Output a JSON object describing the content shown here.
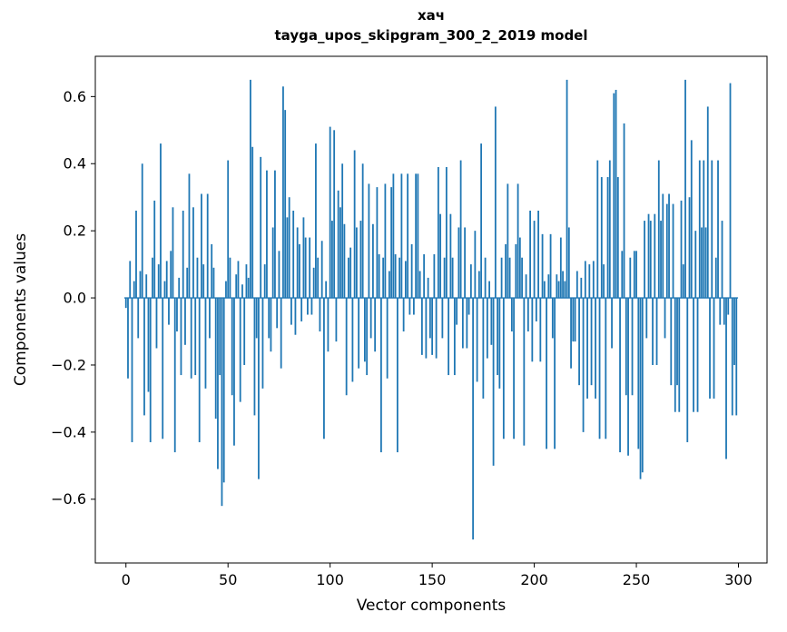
{
  "figure": {
    "title_line1": "хач",
    "title_line2": "tayga_upos_skipgram_300_2_2019 model"
  },
  "chart_data": {
    "type": "bar",
    "title": "хач — tayga_upos_skipgram_300_2_2019 model",
    "xlabel": "Vector components",
    "ylabel": "Components values",
    "xlim": [
      -15,
      314
    ],
    "ylim": [
      -0.79,
      0.72
    ],
    "xticks": [
      0,
      50,
      100,
      150,
      200,
      250,
      300
    ],
    "yticks": [
      -0.6,
      -0.4,
      -0.2,
      0.0,
      0.2,
      0.4,
      0.6
    ],
    "bar_color": "#1f77b4",
    "legend": "none",
    "grid": false,
    "x_start": 0,
    "values": [
      -0.03,
      -0.24,
      0.11,
      -0.43,
      0.05,
      0.26,
      -0.12,
      0.08,
      0.4,
      -0.35,
      0.07,
      -0.28,
      -0.43,
      0.12,
      0.29,
      -0.15,
      0.1,
      0.46,
      -0.42,
      0.05,
      0.11,
      -0.08,
      0.14,
      0.27,
      -0.46,
      -0.1,
      0.06,
      -0.23,
      0.26,
      -0.14,
      0.09,
      0.37,
      -0.24,
      0.27,
      -0.23,
      0.12,
      -0.43,
      0.31,
      0.1,
      -0.27,
      0.31,
      -0.12,
      0.16,
      0.09,
      -0.36,
      -0.51,
      -0.23,
      -0.62,
      -0.55,
      0.05,
      0.41,
      0.12,
      -0.29,
      -0.44,
      0.07,
      0.11,
      -0.31,
      0.04,
      -0.2,
      0.1,
      0.06,
      0.65,
      0.45,
      -0.35,
      -0.12,
      -0.54,
      0.42,
      -0.27,
      0.1,
      0.38,
      -0.12,
      -0.16,
      0.21,
      0.38,
      -0.09,
      0.14,
      -0.21,
      0.63,
      0.56,
      0.24,
      0.3,
      -0.08,
      0.26,
      -0.11,
      0.21,
      0.16,
      -0.07,
      0.24,
      0.18,
      -0.05,
      0.18,
      -0.05,
      0.09,
      0.46,
      0.12,
      -0.1,
      0.17,
      -0.42,
      0.05,
      -0.16,
      0.51,
      0.23,
      0.5,
      -0.13,
      0.32,
      0.27,
      0.4,
      0.22,
      -0.29,
      0.12,
      0.15,
      -0.25,
      0.44,
      0.21,
      -0.21,
      0.23,
      0.4,
      -0.19,
      -0.23,
      0.34,
      -0.12,
      0.22,
      -0.16,
      0.33,
      0.13,
      -0.46,
      0.12,
      0.34,
      -0.24,
      0.08,
      0.33,
      0.37,
      0.13,
      -0.46,
      0.12,
      0.37,
      -0.1,
      0.11,
      0.37,
      -0.05,
      0.16,
      -0.05,
      0.37,
      0.37,
      0.08,
      -0.17,
      0.13,
      -0.18,
      0.06,
      -0.12,
      -0.17,
      0.13,
      -0.18,
      0.39,
      0.25,
      -0.12,
      0.12,
      0.39,
      -0.23,
      0.25,
      0.12,
      -0.23,
      -0.08,
      0.21,
      0.41,
      -0.15,
      0.21,
      -0.15,
      -0.05,
      0.1,
      -0.72,
      0.2,
      -0.25,
      0.08,
      0.46,
      -0.3,
      0.12,
      -0.18,
      0.05,
      -0.14,
      -0.5,
      0.57,
      -0.23,
      -0.27,
      0.12,
      -0.42,
      0.16,
      0.34,
      0.12,
      -0.1,
      -0.42,
      0.16,
      0.34,
      0.18,
      0.12,
      -0.44,
      0.07,
      -0.1,
      0.26,
      -0.19,
      0.23,
      -0.07,
      0.26,
      -0.19,
      0.19,
      0.05,
      -0.45,
      0.07,
      0.19,
      -0.12,
      -0.45,
      0.07,
      0.05,
      0.18,
      0.08,
      0.05,
      0.65,
      0.21,
      -0.21,
      -0.13,
      -0.13,
      0.08,
      -0.26,
      0.06,
      -0.4,
      0.11,
      -0.3,
      0.1,
      -0.26,
      0.11,
      -0.3,
      0.41,
      -0.42,
      0.36,
      0.1,
      -0.42,
      0.36,
      0.41,
      -0.15,
      0.61,
      0.62,
      0.36,
      -0.46,
      0.14,
      0.52,
      -0.29,
      -0.47,
      0.12,
      -0.29,
      0.14,
      0.14,
      -0.45,
      -0.54,
      -0.52,
      0.23,
      -0.12,
      0.25,
      0.23,
      -0.2,
      0.25,
      -0.2,
      0.41,
      0.23,
      0.31,
      -0.12,
      0.28,
      0.31,
      -0.26,
      0.28,
      -0.34,
      -0.26,
      -0.34,
      0.29,
      0.1,
      0.65,
      -0.43,
      0.3,
      0.47,
      -0.34,
      0.2,
      -0.34,
      0.41,
      0.21,
      0.41,
      0.21,
      0.57,
      -0.3,
      0.41,
      -0.3,
      0.12,
      0.41,
      -0.08,
      0.23,
      -0.08,
      -0.48,
      -0.05,
      0.64,
      -0.35,
      -0.2,
      -0.35
    ]
  }
}
